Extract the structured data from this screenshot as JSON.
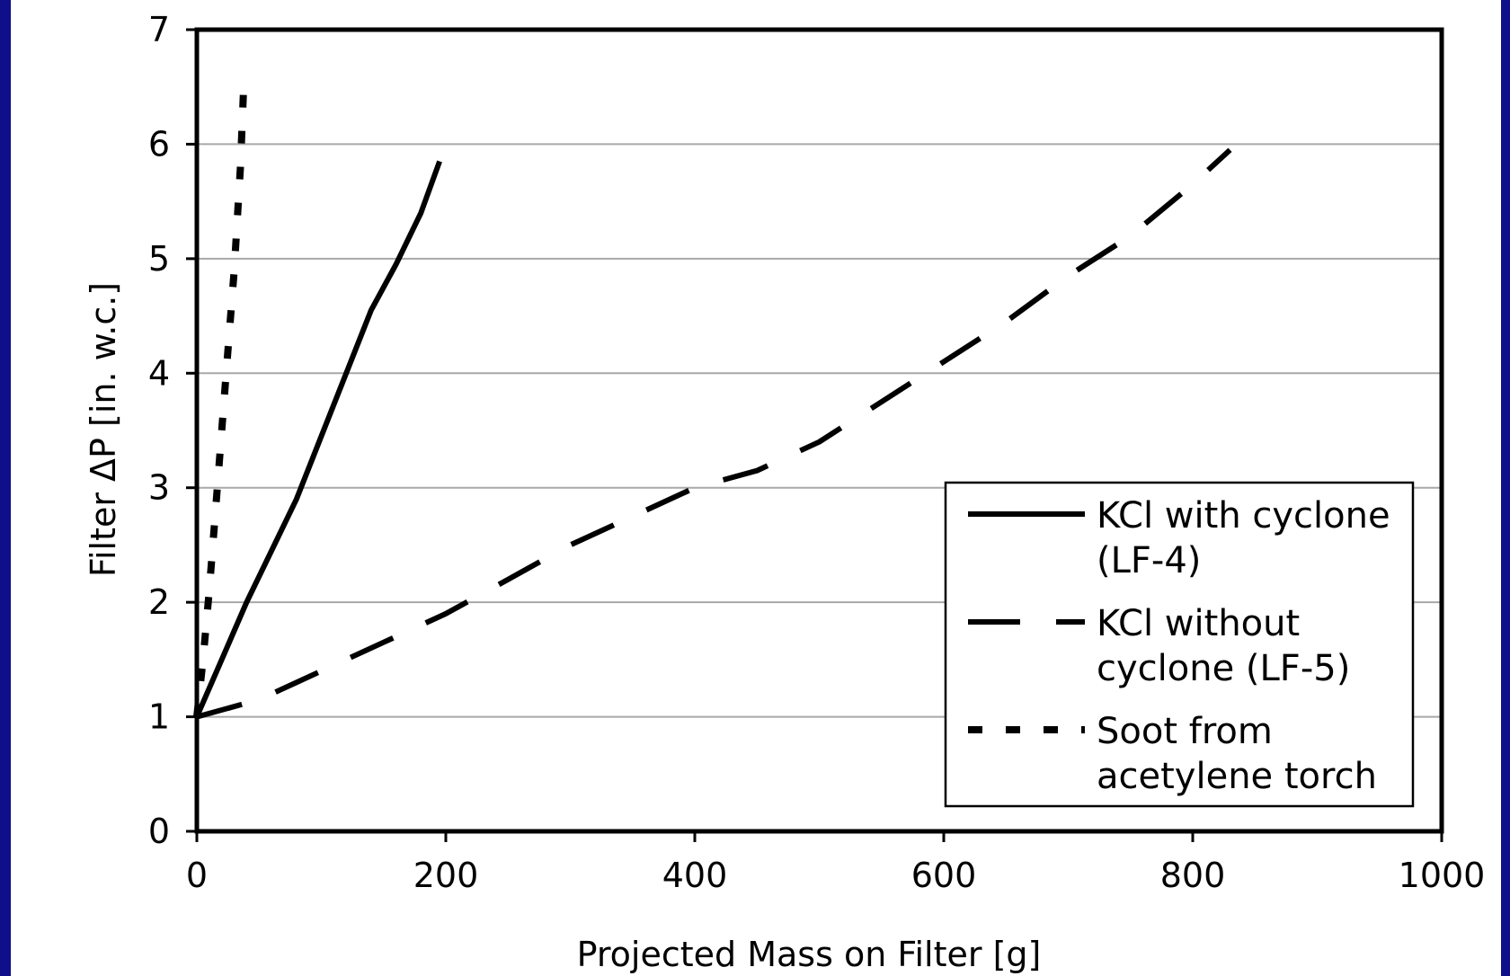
{
  "chart_data": {
    "type": "line",
    "title": "",
    "xlabel": "Projected Mass on Filter [g]",
    "ylabel": "Filter ΔP [in. w.c.]",
    "xlim": [
      0,
      1000
    ],
    "ylim": [
      0,
      7
    ],
    "xticks": [
      0,
      200,
      400,
      600,
      800,
      1000
    ],
    "yticks": [
      0,
      1,
      2,
      3,
      4,
      5,
      6,
      7
    ],
    "xtick_labels": [
      "0",
      "200",
      "400",
      "600",
      "800",
      "1000"
    ],
    "ytick_labels": [
      "0",
      "1",
      "2",
      "3",
      "4",
      "5",
      "6",
      "7"
    ],
    "grid": "horizontal",
    "legend_position": "lower-right",
    "series": [
      {
        "name": "KCl with cyclone (LF-4)",
        "legend_lines": [
          "KCl with cyclone",
          "(LF-4)"
        ],
        "style": "solid",
        "color": "#000000",
        "x": [
          0,
          20,
          40,
          60,
          80,
          100,
          120,
          140,
          160,
          180,
          195
        ],
        "y": [
          1.0,
          1.5,
          2.0,
          2.45,
          2.9,
          3.45,
          4.0,
          4.55,
          4.95,
          5.4,
          5.85
        ]
      },
      {
        "name": "KCl without cyclone (LF-5)",
        "legend_lines": [
          "KCl without",
          "cyclone (LF-5)"
        ],
        "style": "long-dash",
        "color": "#000000",
        "x": [
          0,
          50,
          100,
          150,
          200,
          250,
          300,
          350,
          400,
          450,
          500,
          550,
          600,
          650,
          700,
          750,
          800,
          830
        ],
        "y": [
          1.0,
          1.15,
          1.4,
          1.65,
          1.9,
          2.2,
          2.5,
          2.75,
          3.0,
          3.15,
          3.4,
          3.75,
          4.1,
          4.45,
          4.85,
          5.2,
          5.65,
          5.95
        ]
      },
      {
        "name": "Soot from acetylene torch",
        "legend_lines": [
          "Soot from",
          "acetylene torch"
        ],
        "style": "short-dash",
        "color": "#000000",
        "x": [
          0,
          5,
          10,
          15,
          20,
          25,
          30,
          35,
          38
        ],
        "y": [
          1.0,
          1.5,
          2.1,
          2.8,
          3.5,
          4.2,
          4.9,
          5.8,
          6.6
        ]
      }
    ]
  }
}
